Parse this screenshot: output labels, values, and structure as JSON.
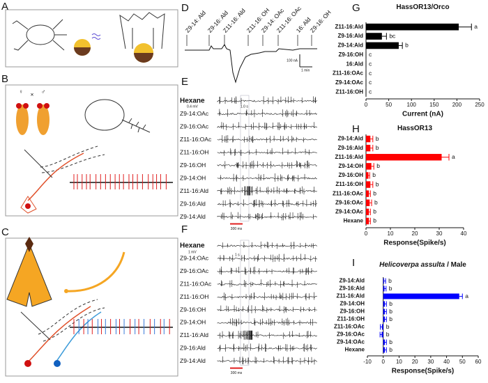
{
  "panel_labels": [
    "A",
    "B",
    "C",
    "D",
    "E",
    "F",
    "G",
    "H",
    "I"
  ],
  "panel_b": {
    "female": "♀",
    "cross": "×",
    "male": "♂"
  },
  "panel_d": {
    "stimuli": [
      "Z9-14: Ald",
      "Z9-16: Ald",
      "Z11-16: Ald",
      "Z11-16: OH",
      "Z9-14: OAc",
      "Z11-16: OAc",
      "16: Ald",
      "Z9-16: OH"
    ],
    "scale_current": "100 nA",
    "scale_time": "1 min"
  },
  "panel_e": {
    "stimuli": [
      "Hexane",
      "Z9-14:OAc",
      "Z9-16:OAc",
      "Z11-16:OAc",
      "Z11-16:OH",
      "Z9-16:OH",
      "Z9-14:OH",
      "Z11-16:Ald",
      "Z9-16:Ald",
      "Z9-14:Ald"
    ],
    "scale_voltage": "0.4 mV",
    "scale_time": "1.0 s",
    "scale_bar": "300 ms"
  },
  "panel_f": {
    "stimuli": [
      "Hexane",
      "Z9-14:OAc",
      "Z9-16:OAc",
      "Z11-16:OAc",
      "Z11-16:OH",
      "Z9-16:OH",
      "Z9-14:OH",
      "Z11-16:Ald",
      "Z9-16:Ald",
      "Z9-14:Ald"
    ],
    "scale_voltage": "1 mV",
    "scale_time": "1 s",
    "scale_bar": "300 ms"
  },
  "chart_data": [
    {
      "type": "bar",
      "orientation": "horizontal",
      "title": "HassOR13/Orco",
      "categories": [
        "Z11-16:Ald",
        "Z9-16:Ald",
        "Z9-14:Ald",
        "Z9-16:OH",
        "16:Ald",
        "Z11-16:OAc",
        "Z9-14:OAc",
        "Z11-16:OH"
      ],
      "values": [
        204,
        35,
        72,
        0,
        0,
        0,
        0,
        0
      ],
      "errors": [
        28,
        10,
        8,
        0,
        0,
        0,
        0,
        0
      ],
      "annotations": [
        "a",
        "bc",
        "b",
        "c",
        "c",
        "c",
        "c",
        "c"
      ],
      "xlabel": "Current (nA)",
      "xlim": [
        0,
        250
      ],
      "xticks": [
        0,
        50,
        100,
        150,
        200,
        250
      ],
      "color": "#000000"
    },
    {
      "type": "bar",
      "orientation": "horizontal",
      "title": "HassOR13",
      "categories": [
        "Z9-14:Ald",
        "Z9-16:Ald",
        "Z11-16:Ald",
        "Z9-14:OH",
        "Z9-16:OH",
        "Z11-16:OH",
        "Z11-16:OAc",
        "Z9-16:OAc",
        "Z9-14:OAc",
        "Hexane"
      ],
      "values": [
        1.8,
        1.8,
        31,
        2.2,
        1,
        1.8,
        1.2,
        1.5,
        1.2,
        1.2
      ],
      "errors": [
        1,
        1,
        3,
        1,
        0.5,
        1,
        0.6,
        0.8,
        0.6,
        0.6
      ],
      "annotations": [
        "b",
        "b",
        "a",
        "b",
        "b",
        "b",
        "b",
        "b",
        "b",
        "b"
      ],
      "xlabel": "Response(Spike/s)",
      "xlim": [
        0,
        40
      ],
      "xticks": [
        0,
        10,
        20,
        30,
        40
      ],
      "color": "#ff0000"
    },
    {
      "type": "bar",
      "orientation": "horizontal",
      "title": "Helicoverpa assulta",
      "title_note": "/ Male",
      "categories": [
        "Z9-14:Ald",
        "Z9-16:Ald",
        "Z11-16:Ald",
        "Z9-14:OH",
        "Z9-16:OH",
        "Z11-16:OH",
        "Z11-16:OAc",
        "Z9-16:OAc",
        "Z9-14:OAc",
        "Hexane"
      ],
      "values": [
        0.5,
        0.8,
        48,
        1,
        1,
        1,
        -0.8,
        -1,
        1,
        1
      ],
      "errors": [
        1,
        1,
        2,
        1,
        1,
        1,
        1,
        1,
        1,
        1
      ],
      "annotations": [
        "b",
        "b",
        "a",
        "b",
        "b",
        "b",
        "b",
        "b",
        "b",
        "b"
      ],
      "xlabel": "Response(Spike/s)",
      "xlim": [
        -10,
        60
      ],
      "xticks": [
        -10,
        0,
        10,
        20,
        30,
        40,
        50,
        60
      ],
      "color": "#0000ff"
    }
  ]
}
